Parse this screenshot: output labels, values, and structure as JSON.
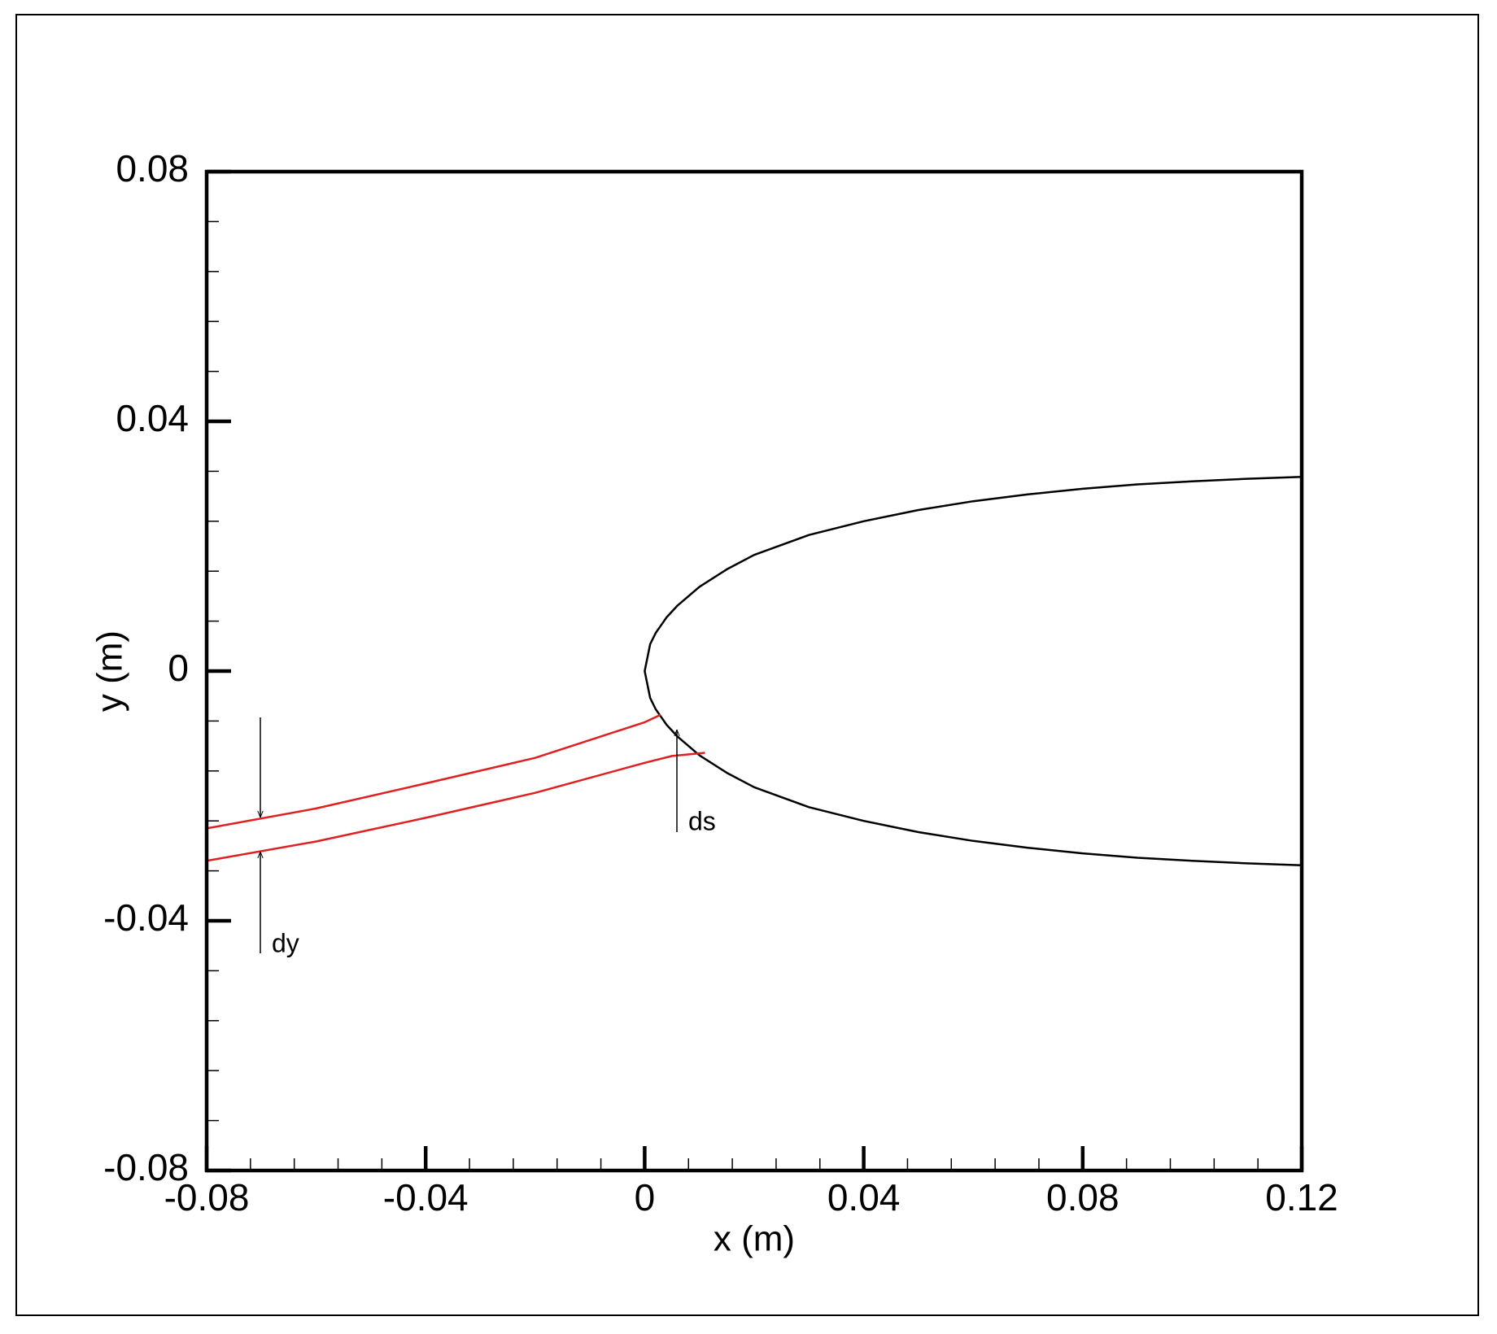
{
  "chart_data": {
    "type": "line",
    "xlabel": "x (m)",
    "ylabel": "y (m)",
    "xlim": [
      -0.08,
      0.12
    ],
    "ylim": [
      -0.08,
      0.08
    ],
    "xticks": [
      -0.08,
      -0.04,
      0,
      0.04,
      0.08,
      0.12
    ],
    "yticks": [
      0.08,
      0.04,
      0,
      -0.04,
      -0.08
    ],
    "xminorticks": [
      -0.072,
      -0.064,
      -0.056,
      -0.048,
      -0.032,
      -0.024,
      -0.016,
      -0.008,
      0.008,
      0.016,
      0.024,
      0.032,
      0.048,
      0.056,
      0.064,
      0.072,
      0.088,
      0.096,
      0.104,
      0.112
    ],
    "yminorticks": [
      0.072,
      0.064,
      0.056,
      0.048,
      0.032,
      0.024,
      0.016,
      0.008,
      -0.008,
      -0.016,
      -0.024,
      -0.032,
      -0.048,
      -0.056,
      -0.064,
      -0.072
    ],
    "annotations": [
      "ds",
      "dy"
    ],
    "series": [
      {
        "color": "#000000",
        "x": [
          0.12,
          0.11,
          0.1,
          0.09,
          0.08,
          0.07,
          0.06,
          0.05,
          0.04,
          0.03,
          0.02,
          0.015,
          0.01,
          0.006,
          0.004,
          0.002,
          0.001,
          0,
          0.001,
          0.002,
          0.004,
          0.006,
          0.01,
          0.015,
          0.02,
          0.03,
          0.04,
          0.05,
          0.06,
          0.07,
          0.08,
          0.09,
          0.1,
          0.11,
          0.12
        ],
        "values": [
          0.0311,
          0.0308,
          0.0304,
          0.0299,
          0.0292,
          0.0283,
          0.0272,
          0.0258,
          0.024,
          0.0218,
          0.0186,
          0.0163,
          0.0135,
          0.0105,
          0.0086,
          0.0061,
          0.0043,
          0,
          -0.0043,
          -0.0061,
          -0.0086,
          -0.0105,
          -0.0135,
          -0.0163,
          -0.0186,
          -0.0218,
          -0.024,
          -0.0258,
          -0.0272,
          -0.0283,
          -0.0292,
          -0.0299,
          -0.0304,
          -0.0308,
          -0.0311
        ]
      },
      {
        "color": "#e02020",
        "x": [
          -0.08,
          -0.06,
          -0.04,
          -0.02,
          0,
          0.0029
        ],
        "values": [
          -0.0252,
          -0.022,
          -0.018,
          -0.0139,
          -0.0082,
          -0.007
        ]
      },
      {
        "color": "#e02020",
        "x": [
          -0.08,
          -0.06,
          -0.04,
          -0.02,
          0,
          0.005,
          0.011
        ],
        "values": [
          -0.0304,
          -0.0273,
          -0.0235,
          -0.0195,
          -0.0147,
          -0.0136,
          -0.0131
        ]
      }
    ]
  }
}
